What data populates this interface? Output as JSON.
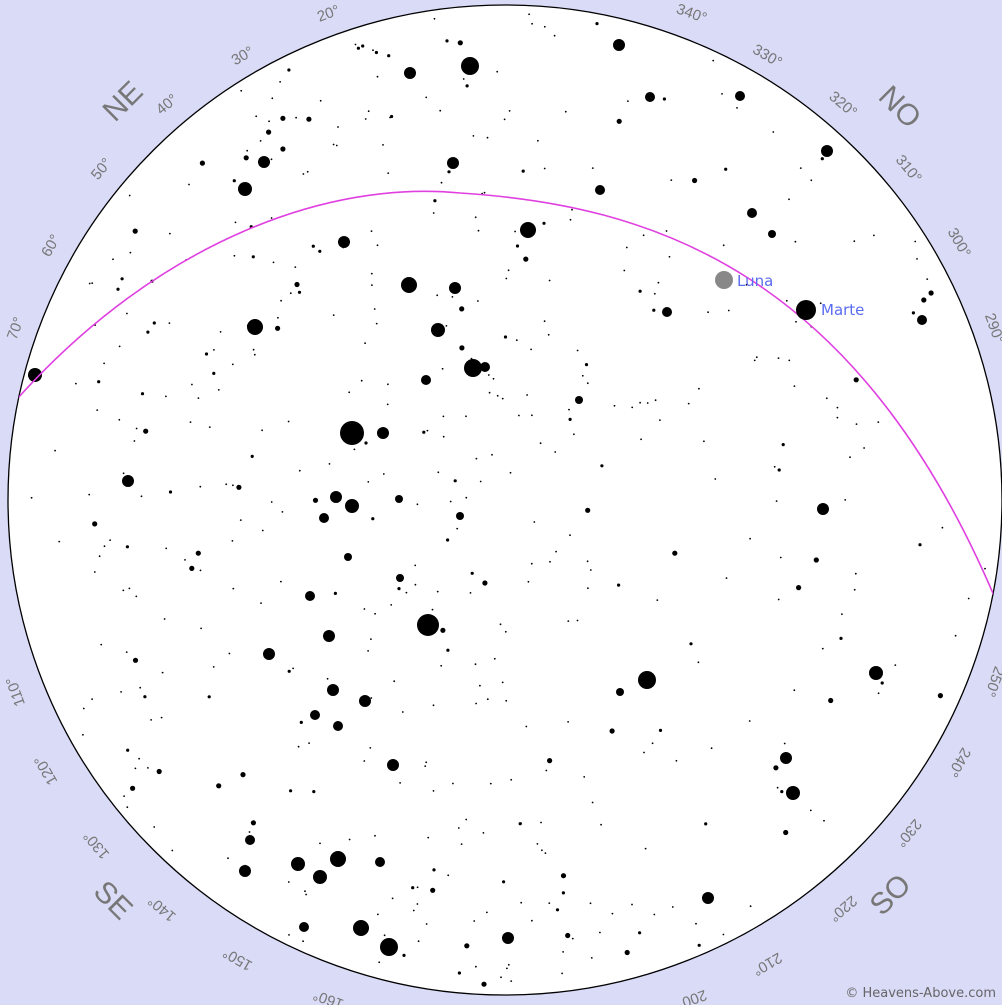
{
  "map": {
    "compass": [
      "NE",
      "NO",
      "SE",
      "SO"
    ],
    "azimuth_ticks": [
      "20°",
      "30°",
      "40°",
      "50°",
      "60°",
      "70°",
      "110°",
      "120°",
      "130°",
      "140°",
      "150°",
      "160°",
      "200°",
      "210°",
      "220°",
      "230°",
      "240°",
      "250°",
      "290°",
      "300°",
      "310°",
      "320°",
      "330°",
      "340°"
    ],
    "ecliptic_color": "#e040e0",
    "planets": [
      {
        "name": "Luna",
        "color": "#888888",
        "label_color": "#5a6cf0"
      },
      {
        "name": "Marte",
        "color": "#000000",
        "label_color": "#5a6cf0"
      }
    ],
    "credit": "© Heavens-Above.com"
  },
  "colors": {
    "background": "#d9dbf7",
    "sky": "#ffffff",
    "rim": "#000000",
    "label": "#777777"
  }
}
